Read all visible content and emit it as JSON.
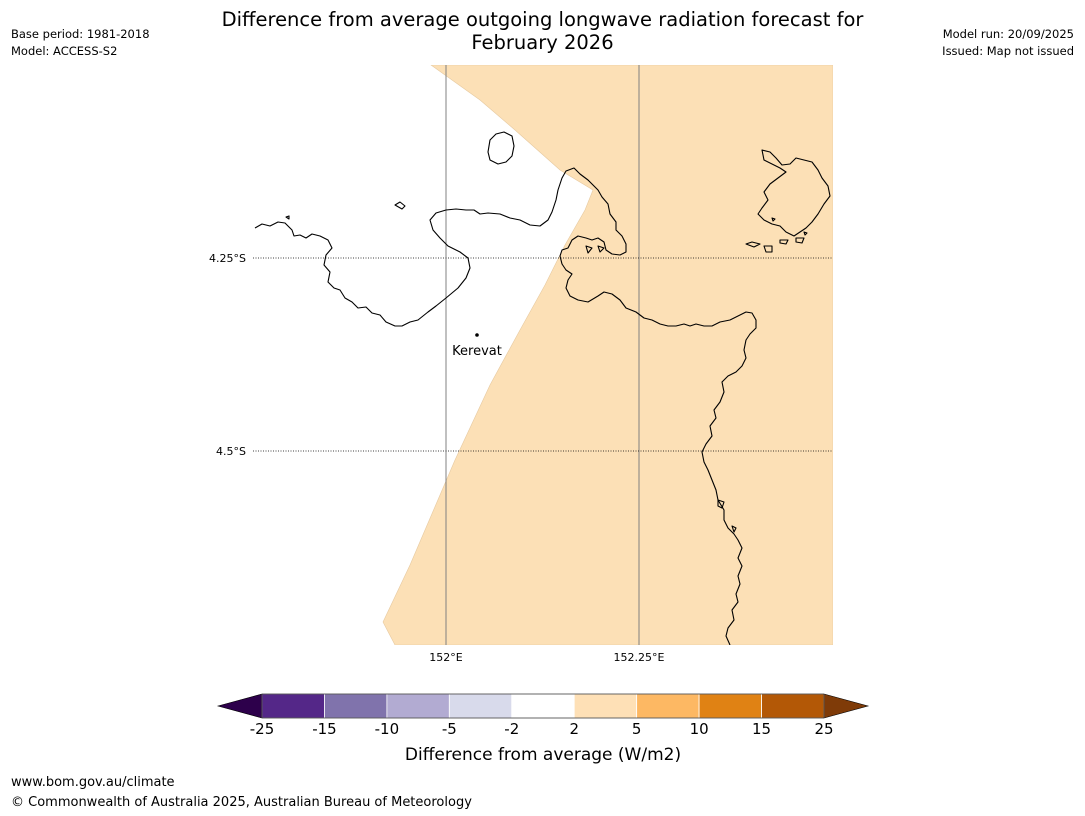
{
  "title_line1": "Difference from average outgoing longwave radiation forecast for",
  "title_line2": "February 2026",
  "meta_left": {
    "base_period": "Base period: 1981-2018",
    "model": "Model: ACCESS-S2"
  },
  "meta_right": {
    "model_run": "Model run: 20/09/2025",
    "issued": "Issued: Map not issued"
  },
  "map": {
    "lat_labels": [
      "4.25°S",
      "4.5°S"
    ],
    "lon_labels": [
      "152°E",
      "152.25°E"
    ],
    "place": {
      "name": "Kerevat",
      "icon": "dot-marker-icon"
    },
    "fill_color": "#fce0b6",
    "land_outline_color": "#000000"
  },
  "colorbar": {
    "ticks": [
      "-25",
      "-15",
      "-10",
      "-5",
      "-2",
      "2",
      "5",
      "10",
      "15",
      "25"
    ],
    "colors": [
      "#542788",
      "#8073ac",
      "#b2abd2",
      "#d8daeb",
      "#ffffff",
      "#fee0b6",
      "#fdb863",
      "#e08214",
      "#b35806"
    ],
    "under_color": "#2d004b",
    "over_color": "#7f3b08",
    "label": "Difference from average (W/m2)"
  },
  "footer": {
    "url": "www.bom.gov.au/climate",
    "copyright": "© Commonwealth of Australia 2025, Australian Bureau of Meteorology"
  }
}
